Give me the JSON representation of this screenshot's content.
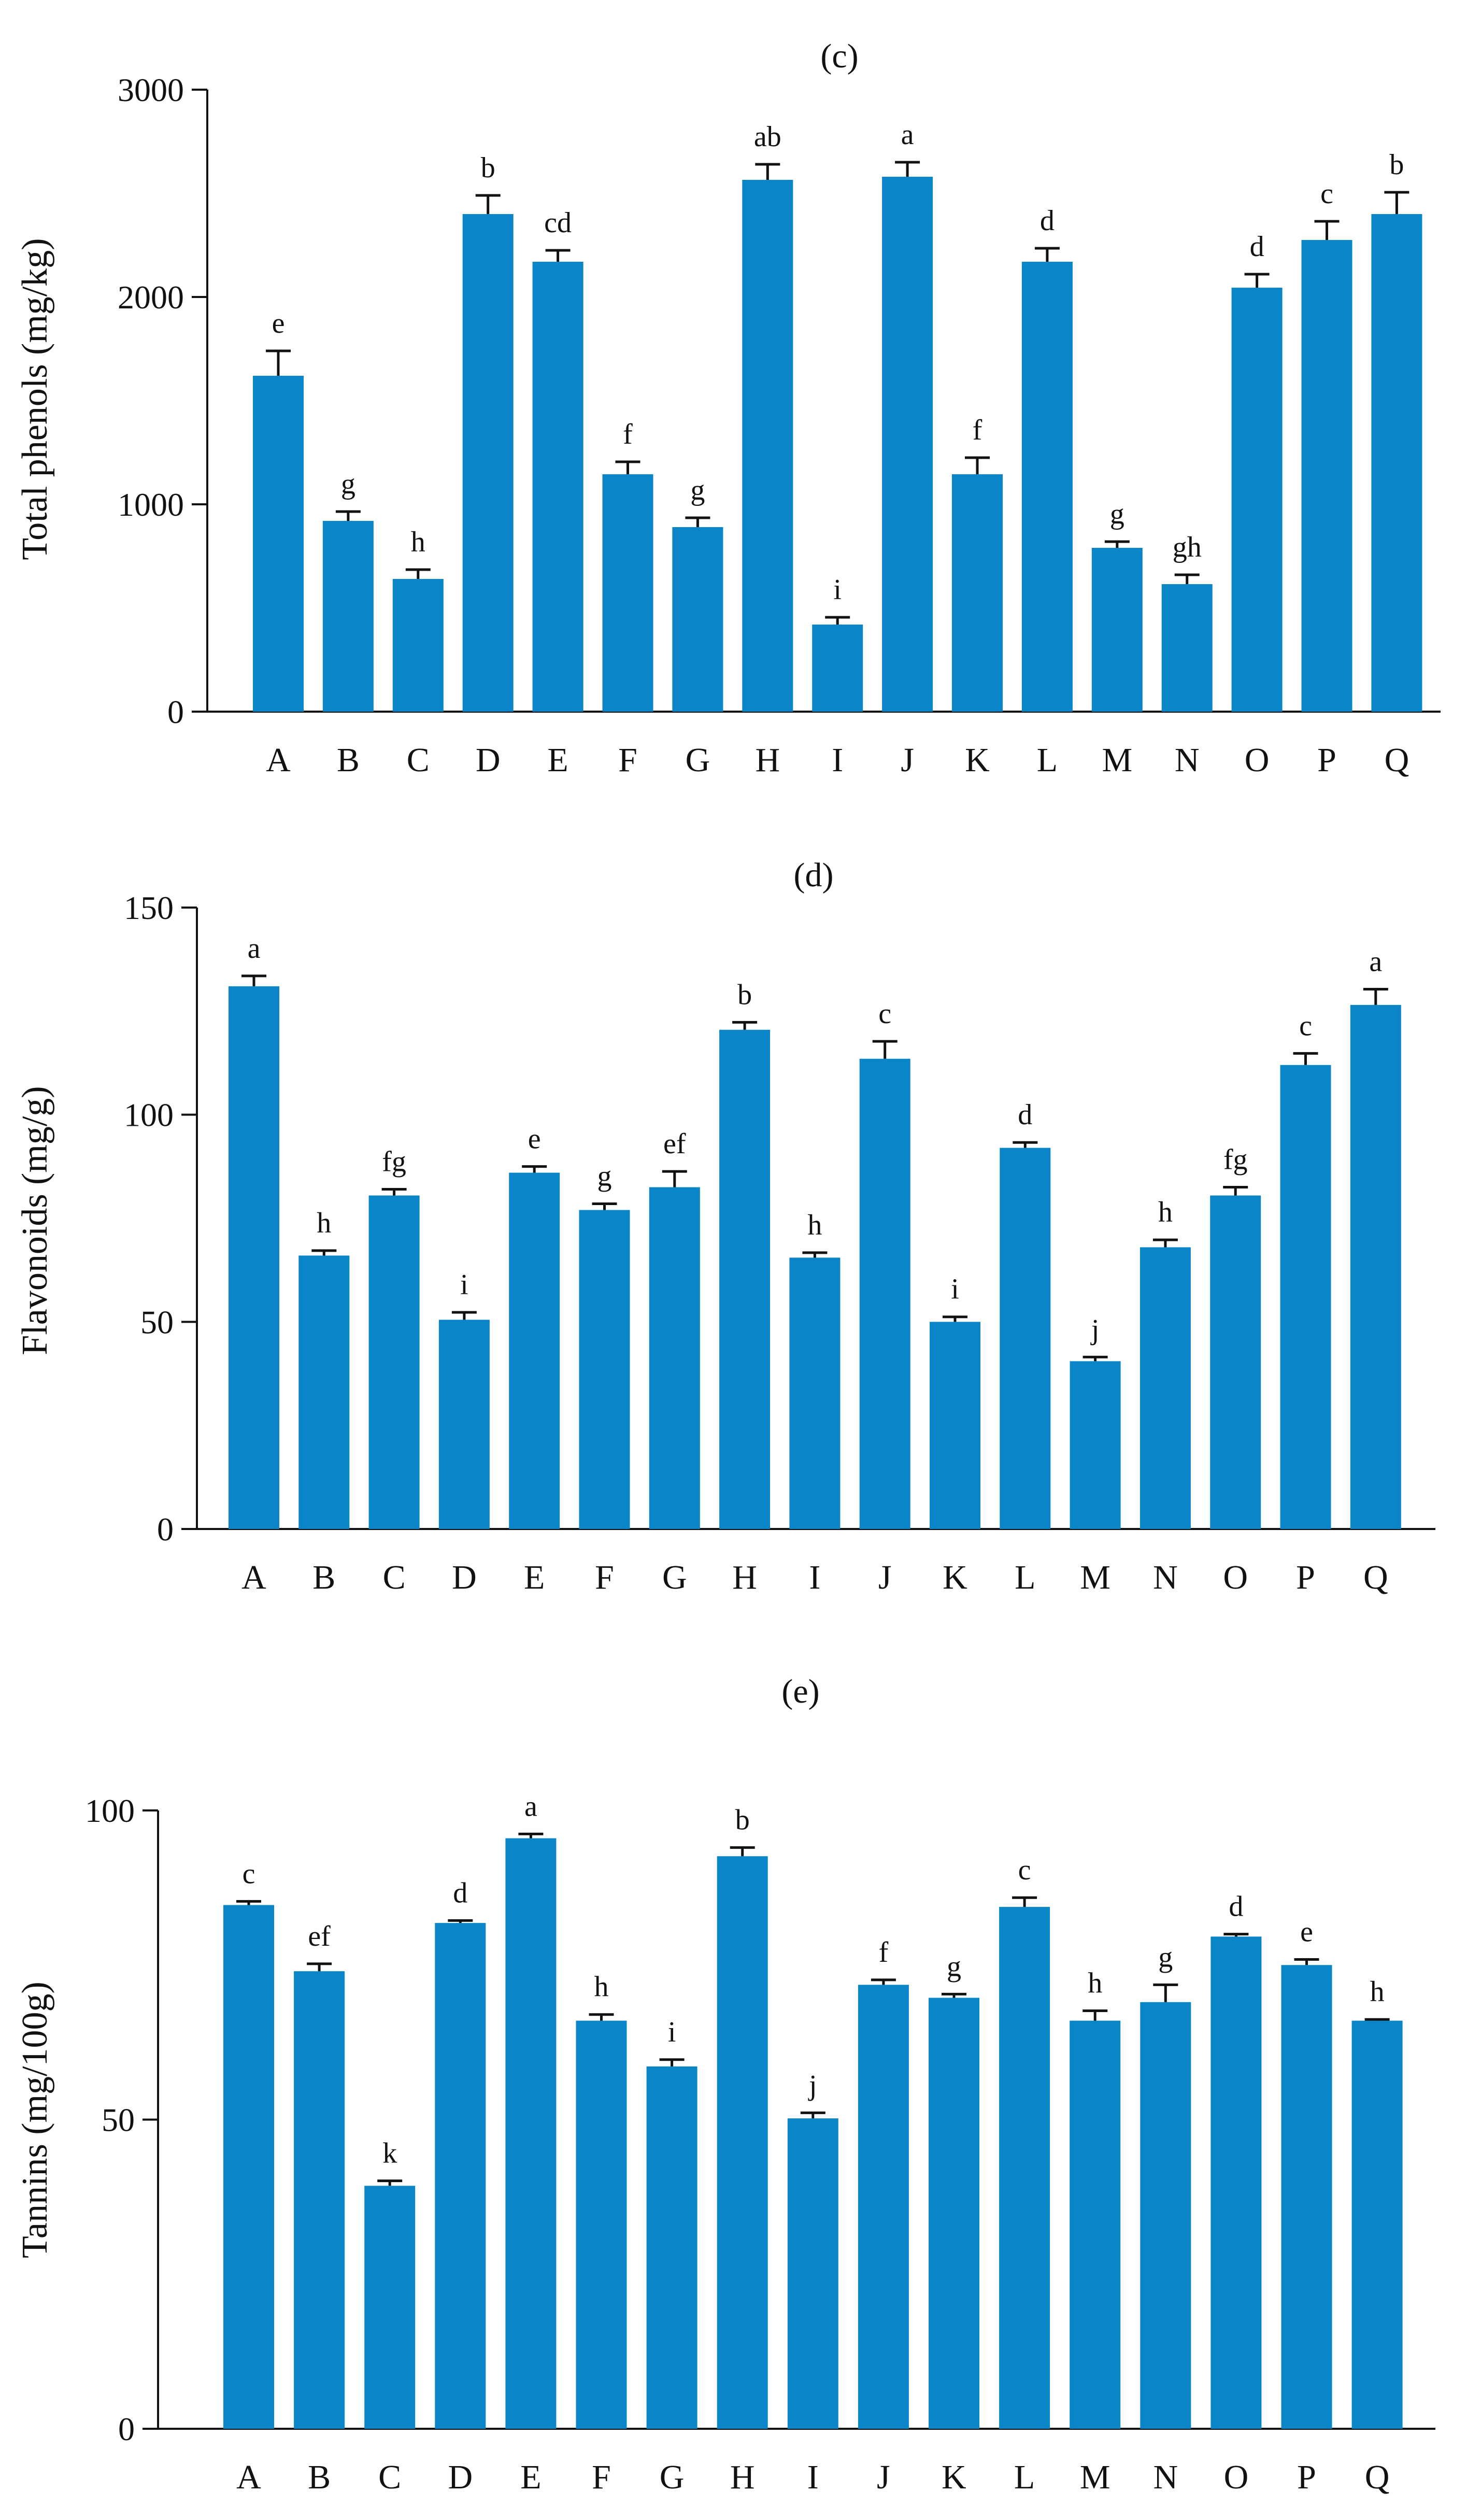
{
  "chart_data": [
    {
      "panel": "(c)",
      "type": "bar",
      "ylabel": "Total phenols (mg/kg)",
      "categories": [
        "A",
        "B",
        "C",
        "D",
        "E",
        "F",
        "G",
        "H",
        "I",
        "J",
        "K",
        "L",
        "M",
        "N",
        "O",
        "P",
        "Q"
      ],
      "values": [
        1620,
        920,
        640,
        2400,
        2170,
        1145,
        890,
        2565,
        420,
        2580,
        1145,
        2170,
        790,
        615,
        2045,
        2275,
        2400
      ],
      "errors": [
        120,
        45,
        45,
        90,
        55,
        60,
        45,
        75,
        35,
        70,
        80,
        65,
        30,
        45,
        65,
        90,
        105
      ],
      "significance": [
        "e",
        "g",
        "h",
        "b",
        "cd",
        "f",
        "g",
        "ab",
        "i",
        "a",
        "f",
        "d",
        "g",
        "gh",
        "d",
        "c",
        "b"
      ],
      "yticks": [
        0,
        1000,
        2000,
        3000
      ],
      "ylim": [
        0,
        3000
      ],
      "color": "#0a86c8"
    },
    {
      "panel": "(d)",
      "type": "bar",
      "ylabel": "Flavonoids (mg/g)",
      "categories": [
        "A",
        "B",
        "C",
        "D",
        "E",
        "F",
        "G",
        "H",
        "I",
        "J",
        "K",
        "L",
        "M",
        "N",
        "O",
        "P",
        "Q"
      ],
      "values": [
        131,
        66,
        80.5,
        50.5,
        86,
        77,
        82.5,
        120.5,
        65.5,
        113.5,
        50,
        92,
        40.5,
        68,
        80.5,
        112,
        126.5
      ],
      "errors": [
        2.5,
        1.2,
        1.5,
        1.8,
        1.5,
        1.5,
        3.8,
        1.8,
        1.2,
        4.2,
        1.2,
        1.3,
        1,
        1.8,
        2,
        2.8,
        3.8
      ],
      "significance": [
        "a",
        "h",
        "fg",
        "i",
        "e",
        "g",
        "ef",
        "b",
        "h",
        "c",
        "i",
        "d",
        "j",
        "h",
        "fg",
        "c",
        "a"
      ],
      "yticks": [
        0,
        50,
        100,
        150
      ],
      "ylim": [
        0,
        150
      ],
      "color": "#0a86c8"
    },
    {
      "panel": "(e)",
      "type": "bar",
      "ylabel": "Tannins (mg/100g)",
      "categories": [
        "A",
        "B",
        "C",
        "D",
        "E",
        "F",
        "G",
        "H",
        "I",
        "J",
        "K",
        "L",
        "M",
        "N",
        "O",
        "P",
        "Q"
      ],
      "values": [
        84.7,
        74,
        39.3,
        81.8,
        95.5,
        66,
        58.6,
        92.6,
        50.2,
        71.8,
        69.7,
        84.4,
        66,
        69,
        79.6,
        75,
        66
      ],
      "errors": [
        0.6,
        1.2,
        0.8,
        0.4,
        0.7,
        1,
        1.1,
        1.4,
        0.9,
        0.8,
        0.6,
        1.5,
        1.6,
        2.8,
        0.4,
        0.9,
        0.2
      ],
      "significance": [
        "c",
        "ef",
        "k",
        "d",
        "a",
        "h",
        "i",
        "b",
        "j",
        "f",
        "g",
        "c",
        "h",
        "g",
        "d",
        "e",
        "h"
      ],
      "yticks": [
        0,
        50,
        100
      ],
      "ylim": [
        0,
        100
      ],
      "color": "#0a86c8"
    }
  ]
}
